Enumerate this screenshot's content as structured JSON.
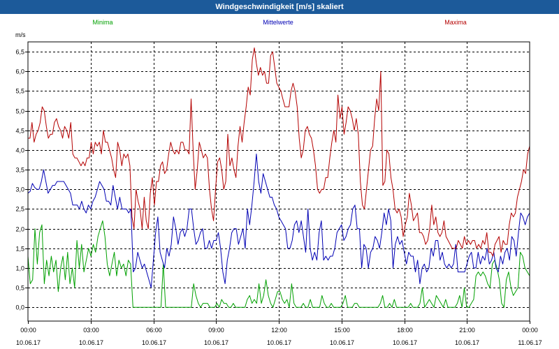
{
  "window": {
    "title": "Windgeschwindigkeit [m/s] skaliert"
  },
  "chart_data": {
    "type": "line",
    "ylabel": "m/s",
    "ylim": [
      -0.35,
      6.75
    ],
    "y_ticks": [
      "0,0",
      "0,5",
      "1,0",
      "1,5",
      "2,0",
      "2,5",
      "3,0",
      "3,5",
      "4,0",
      "4,5",
      "5,0",
      "5,5",
      "6,0",
      "6,5"
    ],
    "x_range_hours": [
      0,
      24
    ],
    "x_ticks": [
      {
        "time": "00:00",
        "date": "10.06.17"
      },
      {
        "time": "03:00",
        "date": "10.06.17"
      },
      {
        "time": "06:00",
        "date": "10.06.17"
      },
      {
        "time": "09:00",
        "date": "10.06.17"
      },
      {
        "time": "12:00",
        "date": "10.06.17"
      },
      {
        "time": "15:00",
        "date": "10.06.17"
      },
      {
        "time": "18:00",
        "date": "10.06.17"
      },
      {
        "time": "21:00",
        "date": "10.06.17"
      },
      {
        "time": "00:00",
        "date": "11.06.17"
      }
    ],
    "grid": true,
    "series": [
      {
        "name": "Minima",
        "color": "#00a000",
        "values": [
          1.3,
          0.6,
          0.7,
          2.0,
          1.1,
          1.9,
          2.1,
          0.6,
          1.2,
          0.8,
          1.3,
          0.9,
          1.2,
          0.4,
          1.0,
          1.3,
          0.7,
          1.4,
          0.6,
          1.0,
          0.5,
          1.7,
          1.0,
          1.6,
          0.9,
          1.2,
          1.5,
          1.3,
          1.6,
          1.4,
          1.8,
          2.0,
          2.2,
          1.8,
          1.1,
          0.8,
          1.1,
          1.4,
          0.8,
          1.2,
          1.0,
          1.1,
          0.8,
          1.2,
          1.1,
          0.0,
          0.0,
          0.0,
          0.0,
          0.0,
          0.0,
          0.0,
          0.0,
          0.0,
          0.0,
          0.0,
          0.0,
          0.0,
          1.1,
          0.0,
          0.0,
          0.0,
          0.0,
          0.0,
          0.0,
          0.0,
          0.0,
          0.0,
          0.0,
          0.0,
          0.0,
          0.6,
          0.3,
          0.1,
          0.0,
          0.1,
          0.1,
          0.1,
          0.0,
          0.0,
          0.0,
          0.1,
          0.0,
          0.2,
          0.1,
          0.1,
          0.0,
          0.0,
          0.1,
          0.0,
          0.0,
          0.0,
          0.0,
          0.0,
          0.2,
          0.3,
          0.1,
          0.2,
          0.1,
          0.6,
          0.1,
          0.3,
          0.7,
          0.3,
          0.1,
          0.0,
          0.2,
          0.4,
          0.4,
          0.2,
          0.1,
          0.2,
          0.0,
          0.6,
          0.1,
          0.0,
          0.0,
          0.0,
          0.1,
          0.0,
          0.0,
          0.2,
          0.0,
          0.0,
          0.0,
          0.0,
          0.3,
          0.1,
          0.0,
          0.0,
          0.1,
          0.0,
          0.0,
          0.0,
          0.0,
          0.1,
          0.3,
          0.0,
          0.0,
          0.0,
          0.1,
          0.1,
          0.0,
          0.0,
          0.0,
          0.0,
          0.0,
          0.0,
          0.0,
          0.0,
          0.0,
          0.1,
          0.3,
          0.0,
          0.0,
          0.1,
          0.0,
          0.2,
          0.0,
          0.0,
          0.0,
          0.0,
          0.0,
          0.0,
          0.1,
          0.0,
          0.0,
          0.0,
          0.1,
          0.5,
          0.0,
          0.1,
          0.2,
          0.1,
          0.0,
          0.3,
          0.2,
          0.1,
          0.0,
          0.2,
          0.0,
          0.0,
          0.0,
          0.0,
          0.1,
          0.3,
          0.0,
          0.5,
          0.0,
          0.0,
          0.1,
          0.2,
          0.8,
          0.9,
          0.8,
          0.9,
          0.8,
          0.6,
          0.5,
          1.1,
          1.2,
          1.0,
          0.7,
          0.1,
          0.0,
          0.7,
          0.9,
          0.5,
          0.3,
          0.4,
          0.5,
          1.4,
          1.3,
          1.0,
          0.9,
          0.8
        ]
      },
      {
        "name": "Mittelwerte",
        "color": "#0000b4",
        "values": [
          2.9,
          2.95,
          3.15,
          3.05,
          3.0,
          3.0,
          3.2,
          3.5,
          3.2,
          2.9,
          3.0,
          3.1,
          3.1,
          3.2,
          3.2,
          3.2,
          3.2,
          3.1,
          3.0,
          2.9,
          2.6,
          2.6,
          2.6,
          2.5,
          2.7,
          2.5,
          2.4,
          2.6,
          2.5,
          2.7,
          2.8,
          3.0,
          3.2,
          3.1,
          3.0,
          2.7,
          2.7,
          2.6,
          3.1,
          2.8,
          2.5,
          2.8,
          2.5,
          2.5,
          2.5,
          2.4,
          2.5,
          0.9,
          1.0,
          1.4,
          1.2,
          1.0,
          1.1,
          0.9,
          0.7,
          0.5,
          1.2,
          1.9,
          2.3,
          1.4,
          1.2,
          1.0,
          1.5,
          1.3,
          1.6,
          2.3,
          2.0,
          1.6,
          1.9,
          2.0,
          1.8,
          2.0,
          2.5,
          2.5,
          2.0,
          1.6,
          1.7,
          1.9,
          2.0,
          1.5,
          1.5,
          1.7,
          1.5,
          1.7,
          1.7,
          1.9,
          1.5,
          0.9,
          0.6,
          1.2,
          1.5,
          1.9,
          2.0,
          2.0,
          1.6,
          1.8,
          2.0,
          1.5,
          2.5,
          2.1,
          2.6,
          3.2,
          3.9,
          3.2,
          2.9,
          3.4,
          3.2,
          3.0,
          2.8,
          2.8,
          2.6,
          2.5,
          2.3,
          2.2,
          2.1,
          2.0,
          1.5,
          1.5,
          1.7,
          2.1,
          2.2,
          1.9,
          2.2,
          1.8,
          1.4,
          2.5,
          1.5,
          1.2,
          1.4,
          1.2,
          1.9,
          2.2,
          1.2,
          1.3,
          1.2,
          1.3,
          1.3,
          1.5,
          1.9,
          2.0,
          2.1,
          1.7,
          1.8,
          2.0,
          2.1,
          2.5,
          2.6,
          2.0,
          2.0,
          1.0,
          1.6,
          1.5,
          1.0,
          1.4,
          1.5,
          1.8,
          1.7,
          1.5,
          1.9,
          2.4,
          2.1,
          2.5,
          2.2,
          1.0,
          1.6,
          1.8,
          1.6,
          1.7,
          1.4,
          1.1,
          1.4,
          1.3,
          1.3,
          0.9,
          1.2,
          0.6,
          1.0,
          1.1,
          0.9,
          1.0,
          1.5,
          1.3,
          1.7,
          1.7,
          1.2,
          1.4,
          1.1,
          1.0,
          1.1,
          1.0,
          1.1,
          1.6,
          0.9,
          0.9,
          0.9,
          0.9,
          1.1,
          1.3,
          1.4,
          1.0,
          1.0,
          1.4,
          1.1,
          1.3,
          1.2,
          1.5,
          1.1,
          1.2,
          1.4,
          1.0,
          0.9,
          1.3,
          1.1,
          1.4,
          1.5,
          1.2,
          1.8,
          1.7,
          1.3,
          1.9,
          2.4,
          2.3,
          2.1,
          2.3,
          2.4
        ]
      },
      {
        "name": "Maxima",
        "color": "#b40000",
        "values": [
          4.3,
          4.3,
          4.7,
          4.2,
          4.4,
          4.5,
          4.7,
          5.1,
          5.0,
          4.6,
          4.3,
          4.4,
          4.4,
          4.7,
          4.8,
          4.6,
          4.5,
          4.3,
          4.6,
          4.5,
          4.3,
          4.7,
          3.9,
          3.8,
          3.8,
          3.7,
          3.6,
          3.7,
          3.6,
          3.8,
          3.8,
          4.2,
          3.9,
          4.2,
          4.1,
          4.2,
          3.9,
          4.5,
          4.2,
          4.2,
          4.0,
          3.8,
          3.5,
          3.3,
          4.2,
          4.0,
          3.6,
          3.9,
          3.8,
          3.9,
          3.6,
          2.3,
          2.0,
          3.0,
          2.7,
          2.5,
          2.0,
          2.8,
          2.2,
          2.0,
          2.9,
          3.3,
          2.6,
          3.2,
          3.2,
          3.6,
          3.7,
          3.4,
          3.5,
          3.9,
          4.2,
          4.0,
          3.9,
          4.0,
          3.9,
          4.2,
          4.2,
          4.0,
          4.0,
          3.9,
          5.3,
          4.0,
          3.0,
          3.5,
          4.2,
          4.0,
          3.8,
          3.9,
          3.8,
          3.0,
          2.5,
          2.2,
          3.0,
          3.7,
          3.8,
          3.5,
          3.0,
          3.2,
          4.4,
          3.6,
          3.8,
          3.5,
          3.3,
          4.1,
          4.6,
          4.2,
          4.7,
          5.1,
          5.6,
          5.4,
          6.3,
          6.6,
          6.2,
          5.9,
          6.1,
          5.9,
          6.0,
          5.7,
          5.7,
          6.4,
          6.5,
          6.1,
          5.7,
          5.6,
          5.5,
          5.3,
          5.1,
          5.1,
          5.1,
          5.5,
          5.7,
          5.5,
          5.1,
          4.3,
          3.8,
          4.0,
          4.5,
          4.6,
          4.4,
          4.3,
          4.0,
          3.6,
          3.0,
          2.9,
          3.0,
          3.0,
          3.3,
          3.3,
          3.8,
          4.2,
          4.5,
          4.2,
          5.4,
          4.8,
          5.1,
          4.4,
          4.7,
          5.1,
          5.0,
          4.8,
          4.5,
          4.8,
          4.4,
          3.2,
          2.6,
          2.5,
          3.0,
          3.5,
          4.0,
          4.1,
          4.8,
          5.3,
          5.0,
          6.0,
          3.1,
          3.2,
          4.0,
          3.9,
          3.3,
          3.0,
          2.5,
          2.4,
          2.5,
          2.3,
          1.8,
          2.1,
          2.3,
          2.9,
          2.6,
          2.2,
          2.3,
          2.4,
          1.9,
          1.9,
          1.8,
          1.6,
          1.7,
          2.0,
          2.6,
          2.1,
          2.3,
          1.9,
          1.8,
          1.9,
          2.2,
          1.8,
          1.7,
          1.6,
          1.5,
          1.5,
          1.5,
          1.7,
          1.6,
          1.5,
          1.8,
          1.6,
          1.7,
          1.6,
          1.7,
          1.7,
          1.5,
          1.6,
          1.5,
          1.7,
          1.6,
          1.9,
          1.4,
          1.4,
          1.3,
          1.6,
          1.7,
          1.8,
          1.4,
          1.7,
          1.6,
          1.6,
          2.1,
          2.4,
          2.3,
          2.4,
          2.8,
          3.0,
          3.2,
          3.5,
          3.4,
          3.9,
          4.1
        ]
      }
    ]
  }
}
